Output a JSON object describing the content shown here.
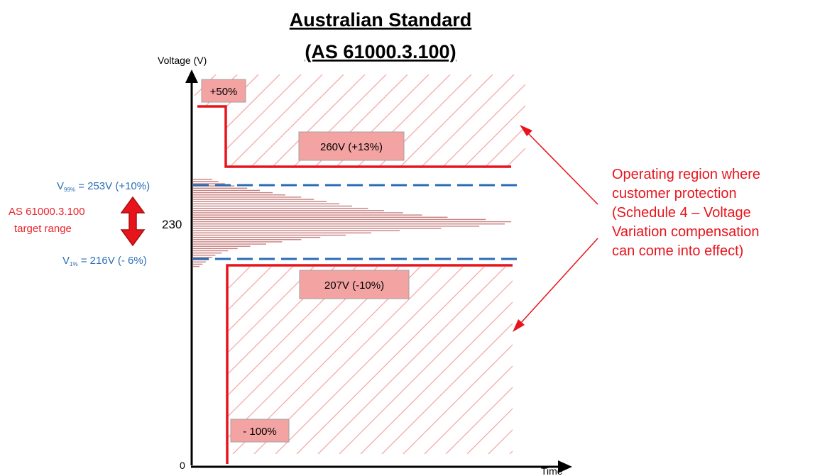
{
  "title_line1": "Australian Standard",
  "title_line2": "(AS 61000.3.100)",
  "y_axis_label": "Voltage (V)",
  "x_axis_label": "Time",
  "origin_label": "0",
  "nominal_label": "230",
  "boxes": {
    "plus50": "+50%",
    "v260": "260V (+13%)",
    "v207": "207V (-10%)",
    "minus100": "- 100%"
  },
  "v99": {
    "prefix": "V",
    "sub": "99%",
    "rest": " = 253V (+10%)"
  },
  "v1": {
    "prefix": "V",
    "sub": "1%",
    "rest": " = 216V (- 6%)"
  },
  "target_line1": "AS 61000.3.100",
  "target_line2": "target range",
  "note_lines": [
    "Operating region where",
    "customer protection",
    "(Schedule 4 – Voltage",
    "Variation compensation",
    "can come into effect)"
  ],
  "colors": {
    "red": "#e8141c",
    "blue": "#2a6db5",
    "box_fill": "#f4a3a3",
    "hatch": "#f5a9a9",
    "hist": "#c98080"
  },
  "histogram_percent": [
    6,
    8,
    10,
    13,
    17,
    21,
    25,
    29,
    34,
    38,
    42,
    46,
    50,
    55,
    60,
    66,
    72,
    80,
    92,
    100,
    98,
    90,
    78,
    65,
    56,
    48,
    40,
    34,
    28,
    23,
    18,
    14,
    11,
    9,
    7,
    6,
    5,
    4,
    3,
    2
  ]
}
